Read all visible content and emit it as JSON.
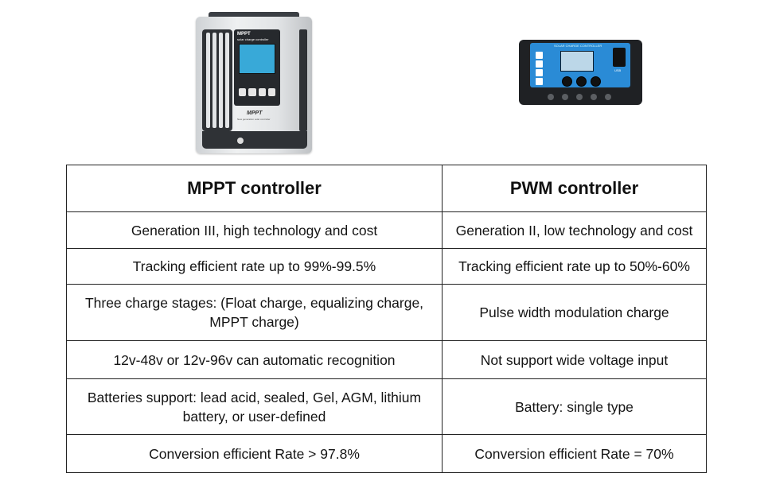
{
  "devices": {
    "mppt": {
      "brand": "MPPT",
      "subtitle": "solar charge controller",
      "label": "MPPT",
      "tagline": "New generation solar controller"
    },
    "pwm": {
      "title": "SOLAR CHARGE CONTROLLER",
      "usb_label": "USB"
    }
  },
  "table": {
    "headers": [
      "MPPT controller",
      "PWM controller"
    ],
    "rows": [
      [
        "Generation III, high technology and cost",
        "Generation II, low technology and cost"
      ],
      [
        "Tracking efficient rate up to 99%-99.5%",
        "Tracking efficient rate up to 50%-60%"
      ],
      [
        "Three charge stages: (Float charge, equalizing charge, MPPT charge)",
        "Pulse width modulation charge"
      ],
      [
        "12v-48v or 12v-96v  can automatic recognition",
        "Not support wide voltage input"
      ],
      [
        "Batteries support: lead acid, sealed, Gel, AGM, lithium battery, or user-defined",
        "Battery: single type"
      ],
      [
        "Conversion efficient Rate > 97.8%",
        "Conversion efficient Rate = 70%"
      ]
    ]
  }
}
